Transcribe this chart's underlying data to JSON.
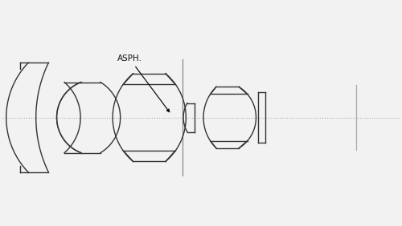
{
  "background_color": "#f2f2f2",
  "line_color": "#333333",
  "axis_color": "#aaaaaa",
  "lw": 1.0,
  "figsize": [
    5.0,
    2.82
  ],
  "dpi": 100,
  "xlim": [
    0.0,
    11.0
  ],
  "ylim": [
    -1.85,
    2.1
  ],
  "annotation_text": "ASPH.",
  "annotation_fontsize": 7.5
}
